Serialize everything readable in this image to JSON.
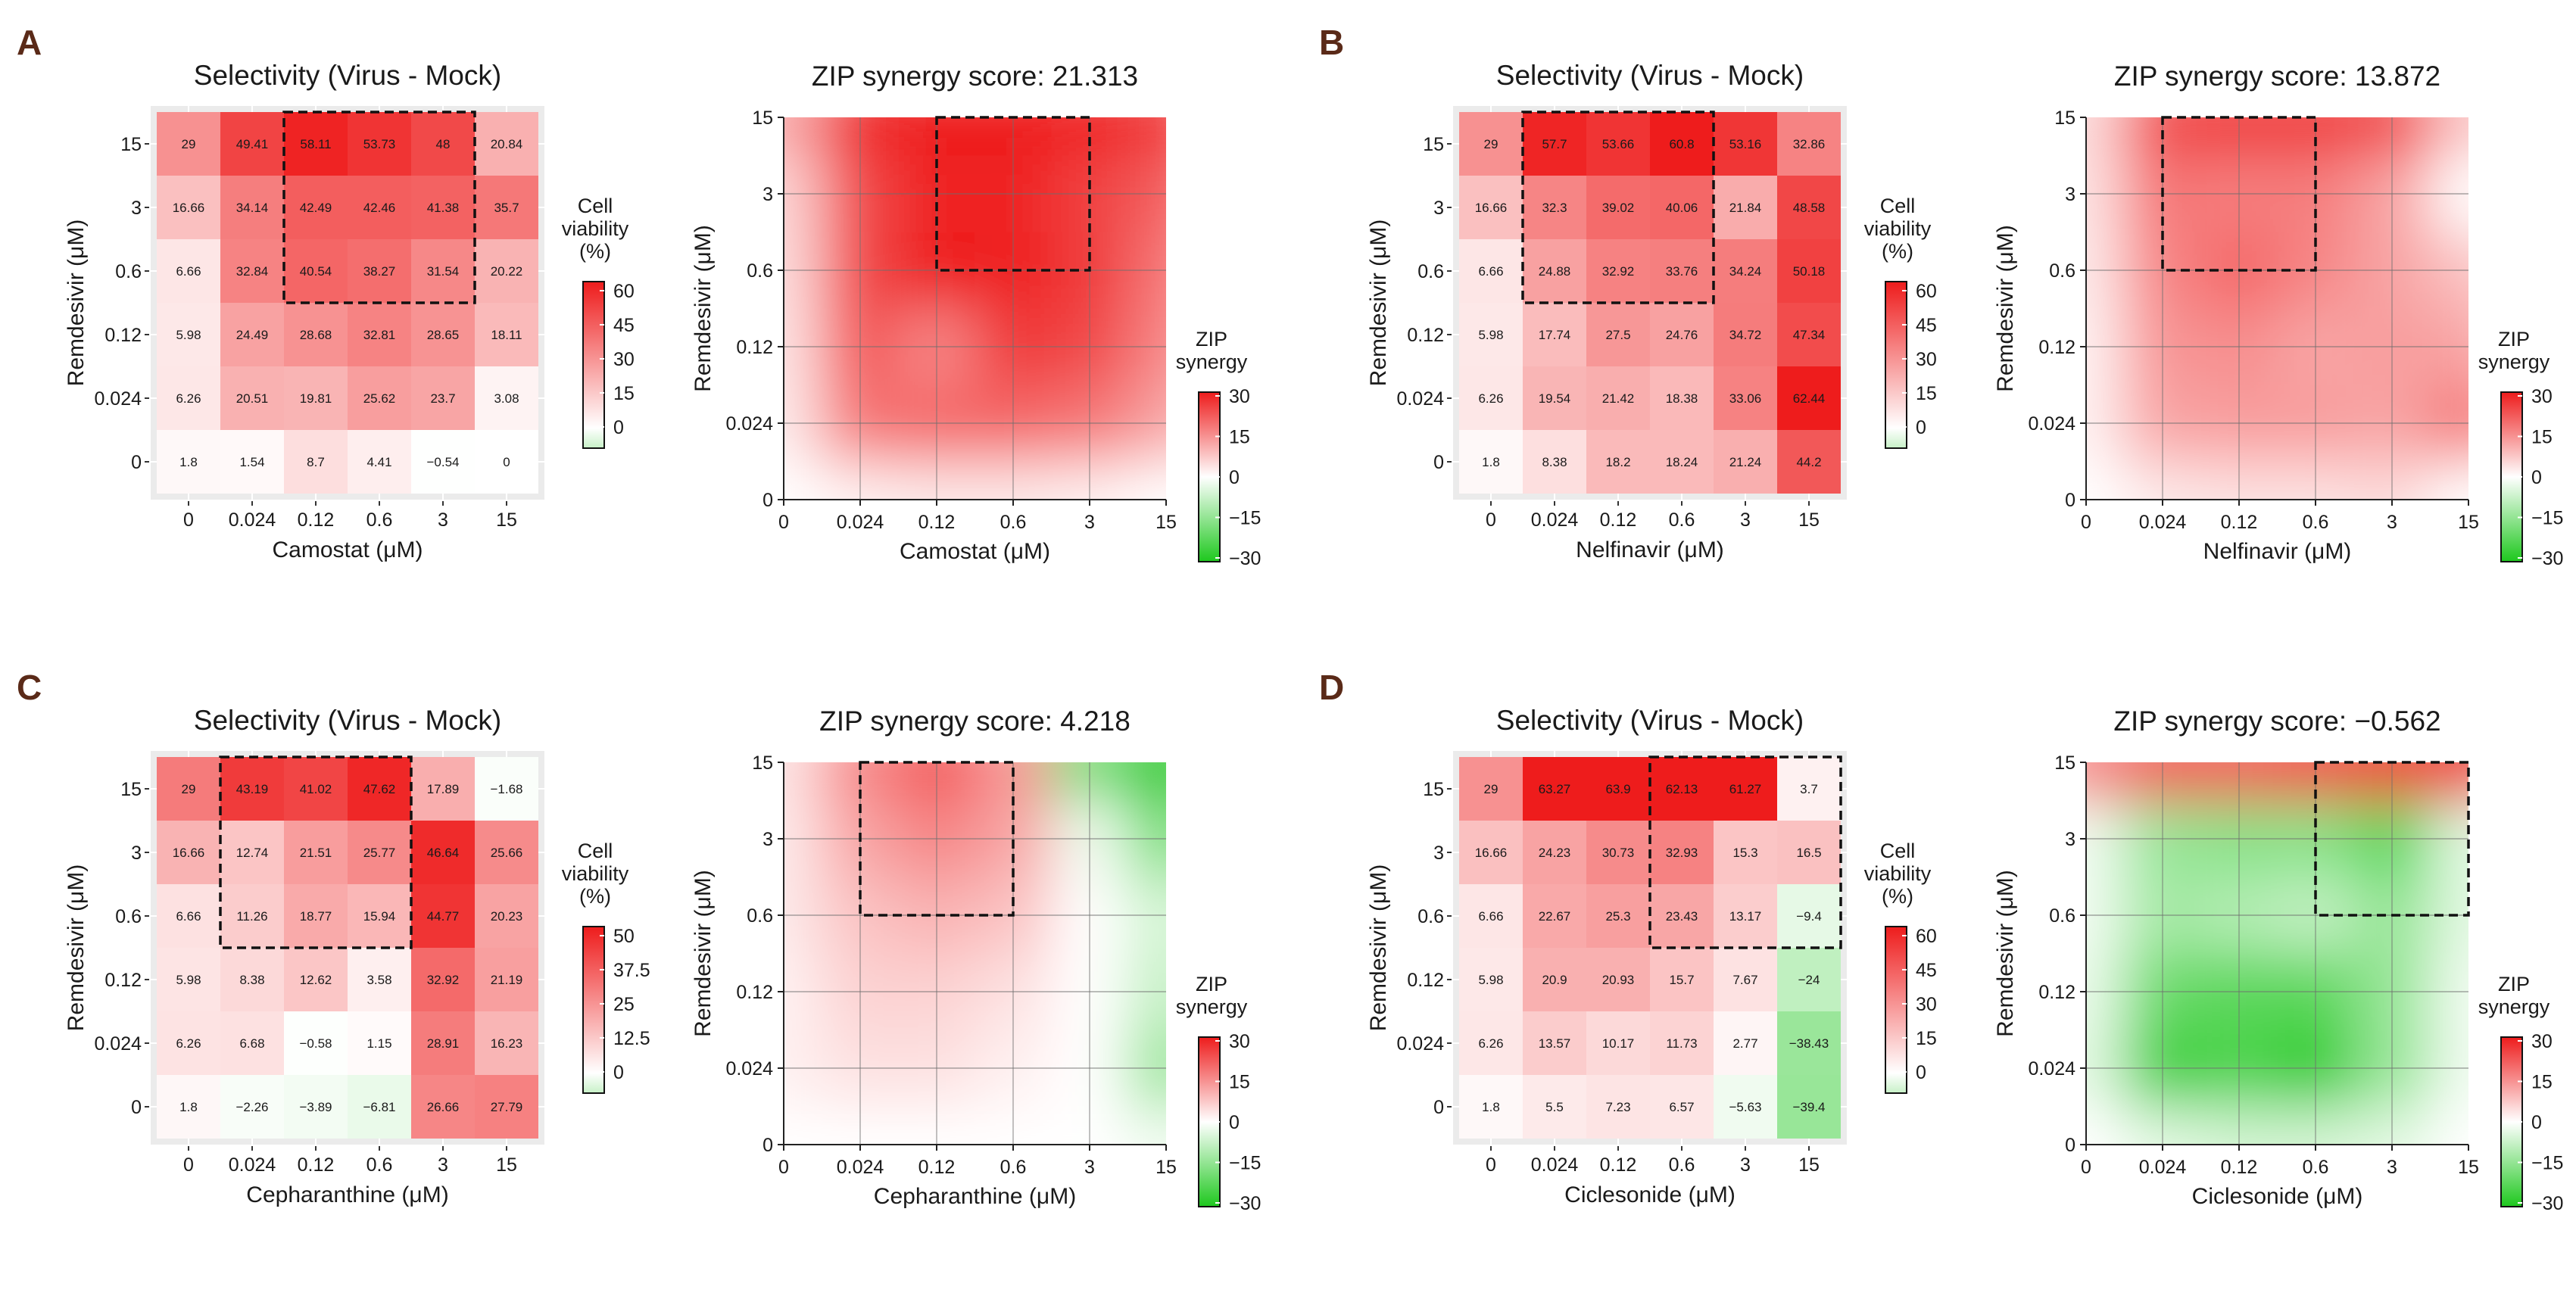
{
  "figure": {
    "drug_y_name": "Remdesivir",
    "concentrations": [
      "0",
      "0.024",
      "0.12",
      "0.6",
      "3",
      "15"
    ],
    "y_axis_label": "Remdesivir (μM)",
    "heatmap_title": "Selectivity (Virus - Mock)",
    "heatmap_legend_title": [
      "Cell",
      "viability",
      "(%)"
    ],
    "synergy_legend_title": [
      "ZIP",
      "synergy"
    ],
    "synergy_legend_ticks": [
      30,
      15,
      0,
      -15,
      -30
    ],
    "colors": {
      "red": "#ee1c1c",
      "white": "#ffffff",
      "green": "#1ec81e",
      "panel_bg": "#ebebeb"
    }
  },
  "chart_data": [
    {
      "panel": "A",
      "type": "heatmap",
      "title": "Selectivity (Virus - Mock)",
      "xlabel": "Camostat (μM)",
      "ylabel": "Remdesivir (μM)",
      "x_categories": [
        "0",
        "0.024",
        "0.12",
        "0.6",
        "3",
        "15"
      ],
      "y_categories": [
        "0",
        "0.024",
        "0.12",
        "0.6",
        "3",
        "15"
      ],
      "values": [
        [
          "1.8",
          "1.54",
          "8.7",
          "4.41",
          "-0.54",
          "0"
        ],
        [
          "6.26",
          "20.51",
          "19.81",
          "25.62",
          "23.7",
          "3.08"
        ],
        [
          "5.98",
          "24.49",
          "28.68",
          "32.81",
          "28.65",
          "18.11"
        ],
        [
          "6.66",
          "32.84",
          "40.54",
          "38.27",
          "31.54",
          "20.22"
        ],
        [
          "16.66",
          "34.14",
          "42.49",
          "42.46",
          "41.38",
          "35.7"
        ],
        [
          "29",
          "49.41",
          "58.11",
          "53.73",
          "48",
          "20.84"
        ]
      ],
      "cells_present": [
        [
          1,
          1,
          1,
          1,
          1,
          1
        ],
        [
          1,
          1,
          1,
          1,
          1,
          1
        ],
        [
          1,
          1,
          1,
          1,
          1,
          1
        ],
        [
          1,
          1,
          1,
          1,
          1,
          1
        ],
        [
          1,
          1,
          1,
          1,
          1,
          1
        ],
        [
          1,
          1,
          1,
          1,
          1,
          1
        ]
      ],
      "scale_max": 60,
      "legend_ticks": [
        "60",
        "45",
        "30",
        "15",
        "0"
      ],
      "highlight": {
        "x_from": "0.12",
        "x_to": "3",
        "y_from": "0.6",
        "y_to": "15"
      }
    },
    {
      "panel": "A",
      "type": "area",
      "title": "ZIP synergy score: 21.313",
      "xlabel": "Camostat (μM)",
      "ylabel": "Remdesivir (μM)",
      "x_ticks": [
        "0",
        "0.024",
        "0.12",
        "0.6",
        "3",
        "15"
      ],
      "y_ticks": [
        "0",
        "0.024",
        "0.12",
        "0.6",
        "3",
        "15"
      ],
      "zlim": [
        -30,
        30
      ],
      "synergy": [
        [
          0,
          2,
          3,
          3,
          2,
          0
        ],
        [
          3,
          18,
          20,
          20,
          18,
          12
        ],
        [
          4,
          22,
          16,
          26,
          24,
          16
        ],
        [
          5,
          24,
          30,
          29,
          26,
          18
        ],
        [
          6,
          24,
          29,
          29,
          25,
          21
        ],
        [
          12,
          28,
          30,
          30,
          29,
          26
        ]
      ],
      "highlight": {
        "x_from": "0.12",
        "x_to": "3",
        "y_from": "0.6",
        "y_to": "15"
      }
    },
    {
      "panel": "B",
      "type": "heatmap",
      "title": "Selectivity (Virus - Mock)",
      "xlabel": "Nelfinavir (μM)",
      "ylabel": "Remdesivir (μM)",
      "x_categories": [
        "0",
        "0.024",
        "0.12",
        "0.6",
        "3",
        "15"
      ],
      "y_categories": [
        "0",
        "0.024",
        "0.12",
        "0.6",
        "3",
        "15"
      ],
      "values": [
        [
          "1.8",
          "8.38",
          "18.2",
          "18.24",
          "21.24",
          "44.2"
        ],
        [
          "6.26",
          "19.54",
          "21.42",
          "18.38",
          "33.06",
          "62.44"
        ],
        [
          "5.98",
          "17.74",
          "27.5",
          "24.76",
          "34.72",
          "47.34"
        ],
        [
          "6.66",
          "24.88",
          "32.92",
          "33.76",
          "34.24",
          "50.18"
        ],
        [
          "16.66",
          "32.3",
          "39.02",
          "40.06",
          "21.84",
          "48.58"
        ],
        [
          "29",
          "57.7",
          "53.66",
          "60.8",
          "53.16",
          "32.86"
        ]
      ],
      "cells_present": [
        [
          1,
          1,
          1,
          1,
          1,
          1
        ],
        [
          1,
          1,
          1,
          1,
          1,
          1
        ],
        [
          1,
          1,
          1,
          1,
          1,
          1
        ],
        [
          1,
          1,
          1,
          1,
          1,
          1
        ],
        [
          1,
          1,
          1,
          1,
          1,
          1
        ],
        [
          1,
          1,
          1,
          1,
          1,
          1
        ]
      ],
      "scale_max": 60,
      "legend_ticks": [
        "60",
        "45",
        "30",
        "15",
        "0"
      ],
      "highlight": {
        "x_from": "0.024",
        "x_to": "0.6",
        "y_from": "0.6",
        "y_to": "15"
      }
    },
    {
      "panel": "B",
      "type": "area",
      "title": "ZIP synergy score: 13.872",
      "xlabel": "Nelfinavir (μM)",
      "ylabel": "Remdesivir (μM)",
      "x_ticks": [
        "0",
        "0.024",
        "0.12",
        "0.6",
        "3",
        "15"
      ],
      "y_ticks": [
        "0",
        "0.024",
        "0.12",
        "0.6",
        "3",
        "15"
      ],
      "zlim": [
        -30,
        30
      ],
      "synergy": [
        [
          0,
          3,
          4,
          4,
          5,
          0
        ],
        [
          2,
          12,
          13,
          13,
          12,
          18
        ],
        [
          2,
          14,
          15,
          12,
          13,
          12
        ],
        [
          3,
          16,
          20,
          16,
          12,
          8
        ],
        [
          4,
          18,
          17,
          17,
          12,
          0
        ],
        [
          5,
          24,
          26,
          26,
          24,
          8
        ]
      ],
      "highlight": {
        "x_from": "0.024",
        "x_to": "0.6",
        "y_from": "0.6",
        "y_to": "15"
      }
    },
    {
      "panel": "C",
      "type": "heatmap",
      "title": "Selectivity (Virus - Mock)",
      "xlabel": "Cepharanthine (μM)",
      "ylabel": "Remdesivir (μM)",
      "x_categories": [
        "0",
        "0.024",
        "0.12",
        "0.6",
        "3",
        "15"
      ],
      "y_categories": [
        "0",
        "0.024",
        "0.12",
        "0.6",
        "3",
        "15"
      ],
      "values": [
        [
          "1.8",
          "-2.26",
          "-3.89",
          "-6.81",
          "26.66",
          "27.79"
        ],
        [
          "6.26",
          "6.68",
          "-0.58",
          "1.15",
          "28.91",
          "16.23"
        ],
        [
          "5.98",
          "8.38",
          "12.62",
          "3.58",
          "32.92",
          "21.19"
        ],
        [
          "6.66",
          "11.26",
          "18.77",
          "15.94",
          "44.77",
          "20.23"
        ],
        [
          "16.66",
          "12.74",
          "21.51",
          "25.77",
          "46.64",
          "25.66"
        ],
        [
          "29",
          "43.19",
          "41.02",
          "47.62",
          "17.89",
          "-1.68"
        ]
      ],
      "cells_present": [
        [
          1,
          1,
          1,
          1,
          1,
          1
        ],
        [
          1,
          1,
          1,
          1,
          1,
          1
        ],
        [
          1,
          1,
          1,
          1,
          1,
          1
        ],
        [
          1,
          1,
          1,
          1,
          1,
          1
        ],
        [
          1,
          1,
          1,
          1,
          1,
          1
        ],
        [
          1,
          1,
          1,
          1,
          1,
          1
        ]
      ],
      "scale_max": 50,
      "legend_ticks": [
        "50",
        "37.5",
        "25",
        "12.5",
        "0"
      ],
      "highlight": {
        "x_from": "0.024",
        "x_to": "0.6",
        "y_from": "0.6",
        "y_to": "15"
      }
    },
    {
      "panel": "C",
      "type": "area",
      "title": "ZIP synergy score: 4.218",
      "xlabel": "Cepharanthine (μM)",
      "ylabel": "Remdesivir (μM)",
      "x_ticks": [
        "0",
        "0.024",
        "0.12",
        "0.6",
        "3",
        "15"
      ],
      "y_ticks": [
        "0",
        "0.024",
        "0.12",
        "0.6",
        "3",
        "15"
      ],
      "zlim": [
        -30,
        30
      ],
      "synergy": [
        [
          0,
          0,
          0,
          0,
          0,
          -2
        ],
        [
          2,
          4,
          4,
          2,
          0,
          -14
        ],
        [
          2,
          6,
          6,
          4,
          0,
          -8
        ],
        [
          3,
          8,
          10,
          8,
          0,
          -6
        ],
        [
          3,
          12,
          16,
          12,
          -2,
          -18
        ],
        [
          4,
          16,
          22,
          14,
          -18,
          -30
        ]
      ],
      "highlight": {
        "x_from": "0.024",
        "x_to": "0.6",
        "y_from": "0.6",
        "y_to": "15"
      }
    },
    {
      "panel": "D",
      "type": "heatmap",
      "title": "Selectivity (Virus - Mock)",
      "xlabel": "Ciclesonide (μM)",
      "ylabel": "Remdesivir (μM)",
      "x_categories": [
        "0",
        "0.024",
        "0.12",
        "0.6",
        "3",
        "15"
      ],
      "y_categories": [
        "0",
        "0.024",
        "0.12",
        "0.6",
        "3",
        "15"
      ],
      "values": [
        [
          "1.8",
          "5.5",
          "7.23",
          "6.57",
          "-5.63",
          "-39.4"
        ],
        [
          "6.26",
          "13.57",
          "10.17",
          "11.73",
          "2.77",
          "-38.43"
        ],
        [
          "5.98",
          "20.9",
          "20.93",
          "15.7",
          "7.67",
          "-24"
        ],
        [
          "6.66",
          "22.67",
          "25.3",
          "23.43",
          "13.17",
          "-9.4"
        ],
        [
          "16.66",
          "24.23",
          "30.73",
          "32.93",
          "15.3",
          "16.5"
        ],
        [
          "29",
          "63.27",
          "63.9",
          "62.13",
          "61.27",
          "3.7"
        ]
      ],
      "cells_present": [
        [
          1,
          1,
          1,
          1,
          1,
          1
        ],
        [
          1,
          1,
          1,
          1,
          1,
          1
        ],
        [
          1,
          1,
          1,
          1,
          1,
          1
        ],
        [
          1,
          1,
          1,
          1,
          1,
          1
        ],
        [
          1,
          1,
          1,
          1,
          1,
          1
        ],
        [
          1,
          1,
          1,
          1,
          1,
          1
        ]
      ],
      "scale_max": 60,
      "legend_ticks": [
        "60",
        "45",
        "30",
        "15",
        "0"
      ],
      "highlight": {
        "x_from": "0.6",
        "x_to": "15",
        "y_from": "0.6",
        "y_to": "15"
      }
    },
    {
      "panel": "D",
      "type": "area",
      "title": "ZIP synergy score: −0.562",
      "xlabel": "Ciclesonide (μM)",
      "ylabel": "Remdesivir (μM)",
      "x_ticks": [
        "0",
        "0.024",
        "0.12",
        "0.6",
        "3",
        "15"
      ],
      "y_ticks": [
        "0",
        "0.024",
        "0.12",
        "0.6",
        "3",
        "15"
      ],
      "zlim": [
        -30,
        30
      ],
      "synergy": [
        [
          0,
          -4,
          -6,
          -6,
          -4,
          0
        ],
        [
          -4,
          -26,
          -24,
          -28,
          -14,
          -2
        ],
        [
          -3,
          -20,
          -22,
          -22,
          -14,
          -2
        ],
        [
          -2,
          -12,
          -10,
          -8,
          -14,
          -4
        ],
        [
          -2,
          -14,
          -16,
          -16,
          -22,
          -4
        ],
        [
          16,
          22,
          22,
          24,
          26,
          28
        ]
      ],
      "highlight": {
        "x_from": "0.6",
        "x_to": "15",
        "y_from": "0.6",
        "y_to": "15"
      }
    }
  ]
}
